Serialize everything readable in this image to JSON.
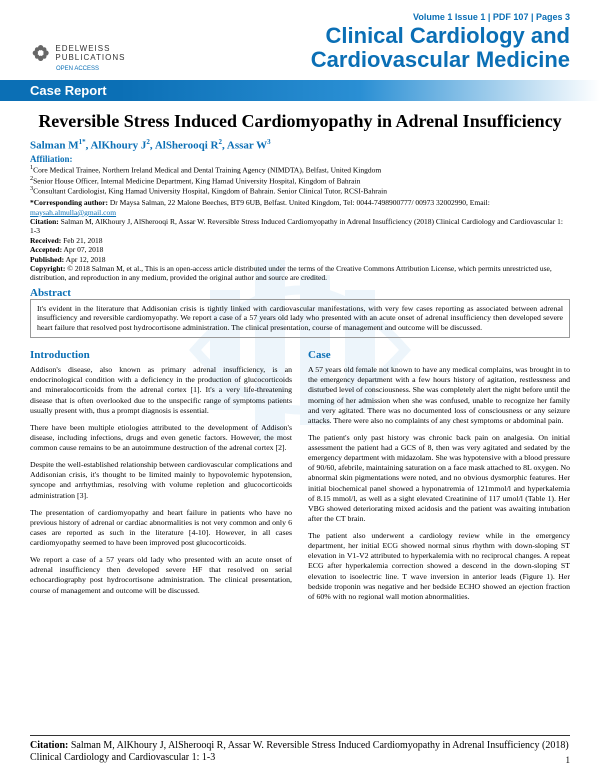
{
  "header": {
    "publisher_name": "EDELWEISS PUBLICATIONS",
    "open_access": "OPEN ACCESS",
    "issue_line": "Volume 1 Issue 1 | PDF 107 | Pages 3",
    "journal_title_l1": "Clinical Cardiology and",
    "journal_title_l2": "Cardiovascular Medicine",
    "section_label": "Case Report"
  },
  "article": {
    "title": "Reversible Stress Induced Cardiomyopathy in Adrenal Insufficiency",
    "authors_html": "Salman M<sup>1*</sup>, AlKhoury J<sup>2</sup>, AlSherooqi R<sup>2</sup>, Assar W<sup>3</sup>",
    "affiliation_label": "Affiliation:",
    "affiliations": [
      "Core Medical Trainee, Northern Ireland Medical and Dental Training Agency (NIMDTA), Belfast, United Kingdom",
      "Senior House Officer, Internal Medicine Department, King Hamad University Hospital, Kingdom of Bahrain",
      "Consultant Cardiologist, King Hamad University Hospital, Kingdom of Bahrain. Senior Clinical Tutor, RCSI-Bahrain"
    ],
    "corresponding": "Dr Maysa Salman, 22 Malone Beeches, BT9 6UB, Belfast. United Kingdom, Tel: 0044-7498900777/ 00973 32002990, Email: ",
    "corresponding_email": "maysah.almulla@gmail.com",
    "citation": "Salman M, AlKhoury J, AlSherooqi R, Assar W. Reversible Stress Induced Cardiomyopathy in Adrenal Insufficiency (2018) Clinical Cardiology and Cardiovascular 1: 1-3",
    "received": "Feb 21, 2018",
    "accepted": "Apr 07, 2018",
    "published": "Apr 12, 2018",
    "copyright": "© 2018 Salman M, et al., This is an open-access article distributed under the terms of the Creative Commons Attribution License, which permits unrestricted use, distribution, and reproduction in any medium, provided the original author and source are credited.",
    "abstract_label": "Abstract",
    "abstract": "It's evident in the literature that Addisonian crisis is tightly linked with cardiovascular manifestations, with very few cases reporting as associated between adrenal insufficiency and reversible cardiomyopathy. We report a case of a 57 years old lady who presented with an acute onset of adrenal insufficiency then developed severe heart failure that resolved post hydrocortisone administration. The clinical presentation, course of management and outcome will be discussed."
  },
  "body": {
    "intro_heading": "Introduction",
    "intro_p1": "Addison's disease, also known as primary adrenal insufficiency, is an endocrinological condition with a deficiency in the production of glucocorticoids and mineralocorticoids from the adrenal cortex [1]. It's a very life-threatening disease that is often overlooked due to the unspecific range of symptoms patients usually present with, thus a prompt diagnosis is essential.",
    "intro_p2": "There have been multiple etiologies attributed to the development of Addison's disease, including infections, drugs and even genetic factors. However, the most common cause remains to be an autoimmune destruction of the adrenal cortex [2].",
    "intro_p3": "Despite the well-established relationship between cardiovascular complications and Addisonian crisis, it's thought to be limited mainly to hypovolemic hypotension, syncope and arrhythmias, resolving with volume repletion and glucocorticoids administration [3].",
    "intro_p4": "The presentation of cardiomyopathy and heart failure in patients who have no previous history of adrenal or cardiac abnormalities is not very common and only 6 cases are reported as such in the literature [4-10]. However, in all cases cardiomyopathy seemed to have been improved post glucocorticoids.",
    "intro_p5": "We report a case of a 57 years old lady who presented with an acute onset of adrenal insufficiency then developed severe HF that resolved on serial echocardiography post hydrocortisone administration. The clinical presentation, course of management and outcome will be discussed.",
    "case_heading": "Case",
    "case_p1": "A 57 years old female not known to have any medical complains, was brought in to the emergency department with a few hours history of agitation, restlessness and disturbed level of consciousness. She was completely alert the night before until the morning of her admission when she was confused, unable to recognize her family and very agitated. There was no documented loss of consciousness or any seizure attacks. There were also no complaints of any chest symptoms or abdominal pain.",
    "case_p2": "The patient's only past history was chronic back pain on analgesia. On initial assessment the patient had a GCS of 8, then was very agitated and sedated by the emergency department with midazolam. She was hypotensive with a blood pressure of 90/60, afebrile, maintaining saturation on a face mask attached to 8L oxygen. No abnormal skin pigmentations were noted, and no obvious dysmorphic features. Her initial biochemical panel showed a hyponatremia of 121mmol/l and hyperkalemia of 8.15 mmol/l, as well as a sight elevated Creatinine of 117 umol/l (Table 1). Her VBG showed deteriorating mixed acidosis and the patient was awaiting intubation after the CT brain.",
    "case_p3": "The patient also underwent a cardiology review while in the emergency department, her initial ECG showed normal sinus rhythm with down-sloping ST elevation in V1-V2 attributed to hyperkalemia with no reciprocal changes. A repeat ECG after hyperkalemia correction showed a descend in the down-sloping ST elevation to isoelectric line. T wave inversion in anterior leads (Figure 1). Her bedside troponin was negative and her bedside ECHO showed an ejection fraction of 60% with no regional wall motion abnormalities."
  },
  "footer": {
    "citation_label": "Citation:",
    "citation_text": " Salman M, AlKhoury J, AlSherooqi R, Assar W. Reversible Stress Induced Cardiomyopathy in Adrenal Insufficiency (2018) Clinical Cardiology and Cardiovascular 1: 1-3",
    "page_number": "1"
  },
  "colors": {
    "brand_blue": "#0b6fb5",
    "watermark_blue": "#2a8fd4"
  }
}
